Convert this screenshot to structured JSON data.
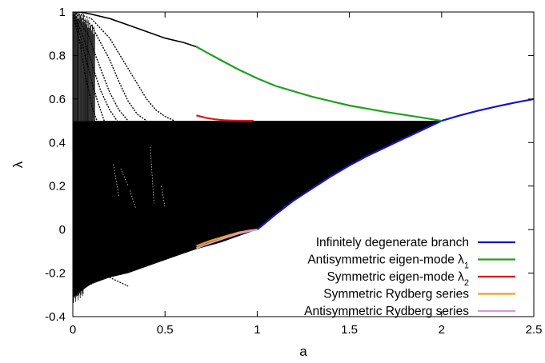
{
  "chart_data": {
    "type": "line",
    "xlabel": "a",
    "ylabel": "λ",
    "xlim": [
      0,
      2.5
    ],
    "ylim": [
      -0.4,
      1
    ],
    "x_ticks": [
      "0",
      "0.5",
      "1",
      "1.5",
      "2",
      "2.5"
    ],
    "y_ticks": [
      "-0.4",
      "-0.2",
      "0",
      "0.2",
      "0.4",
      "0.6",
      "0.8",
      "1"
    ],
    "x_tick_values": [
      0,
      0.5,
      1,
      1.5,
      2,
      2.5
    ],
    "y_tick_values": [
      -0.4,
      -0.2,
      0,
      0.2,
      0.4,
      0.6,
      0.8,
      1
    ],
    "grid": false,
    "legend_position": "bottom-right",
    "series": [
      {
        "name": "Infinitely degenerate branch",
        "color": "#1414c8",
        "x": [
          1.0,
          1.1,
          1.2,
          1.3,
          1.4,
          1.5,
          1.6,
          1.7,
          1.8,
          1.9,
          2.0,
          2.1,
          2.2,
          2.3,
          2.4,
          2.5
        ],
        "y": [
          0.0,
          0.07,
          0.135,
          0.19,
          0.245,
          0.295,
          0.34,
          0.38,
          0.42,
          0.46,
          0.5,
          0.525,
          0.547,
          0.566,
          0.584,
          0.6
        ]
      },
      {
        "name": "Antisymmetric eigen-mode λ1",
        "label_base": "Antisymmetric eigen-mode λ",
        "label_sub": "1",
        "color": "#1ea01e",
        "x": [
          0.67,
          0.8,
          0.9,
          1.0,
          1.1,
          1.2,
          1.3,
          1.4,
          1.5,
          1.6,
          1.7,
          1.8,
          1.9,
          2.0
        ],
        "y": [
          0.84,
          0.78,
          0.735,
          0.695,
          0.66,
          0.635,
          0.61,
          0.59,
          0.57,
          0.555,
          0.54,
          0.527,
          0.514,
          0.5
        ]
      },
      {
        "name": "Symmetric eigen-mode λ2",
        "label_base": "Symmetric eigen-mode λ",
        "label_sub": "2",
        "color": "#e01818",
        "x": [
          0.67,
          0.72,
          0.77,
          0.82,
          0.87,
          0.93,
          0.98
        ],
        "y": [
          0.525,
          0.514,
          0.507,
          0.503,
          0.501,
          0.5,
          0.5
        ]
      },
      {
        "name": "Symmetric Rydberg series",
        "color": "#f0a020",
        "x": [
          0.67,
          0.75,
          0.83,
          0.9,
          0.96,
          1.0
        ],
        "y": [
          -0.075,
          -0.05,
          -0.03,
          -0.013,
          -0.004,
          0.0
        ]
      },
      {
        "name": "Antisymmetric Rydberg series",
        "color": "#d69ad6",
        "x": [
          0.67,
          0.75,
          0.83,
          0.9,
          0.96,
          1.0
        ],
        "y": [
          -0.085,
          -0.06,
          -0.037,
          -0.018,
          -0.006,
          0.0
        ]
      }
    ],
    "dense_band": {
      "color": "#000000",
      "description_points_top": [
        [
          0.0,
          0.5
        ],
        [
          1.0,
          0.5
        ],
        [
          2.0,
          0.5
        ]
      ],
      "upper_envelope_x": [
        0.0,
        0.02,
        0.05,
        0.1,
        0.15,
        0.2,
        0.3,
        0.4,
        0.5,
        0.6,
        0.67,
        1.0
      ],
      "upper_envelope_y": [
        1.0,
        0.99,
        0.98,
        0.93,
        0.88,
        0.83,
        0.72,
        0.6,
        0.52,
        0.5,
        0.5,
        0.5
      ],
      "lower_envelope_x": [
        0.0,
        0.02,
        0.05,
        0.1,
        0.2,
        0.3,
        0.4,
        0.5,
        0.6,
        0.67,
        0.8,
        0.9,
        1.0
      ],
      "lower_envelope_y": [
        -0.31,
        -0.3,
        -0.28,
        -0.25,
        -0.22,
        -0.2,
        -0.17,
        -0.14,
        -0.11,
        -0.09,
        -0.06,
        -0.03,
        0.0
      ],
      "degenerate_top_curve_x": [
        0.0,
        0.05,
        0.1,
        0.2,
        0.3,
        0.4,
        0.5,
        0.6,
        0.67
      ],
      "degenerate_top_curve_y": [
        1.0,
        0.998,
        0.99,
        0.97,
        0.94,
        0.91,
        0.88,
        0.86,
        0.84
      ],
      "falling_curves": [
        {
          "x": [
            0.0,
            0.1,
            0.2,
            0.3,
            0.4,
            0.45,
            0.5,
            0.55
          ],
          "y": [
            1.0,
            0.97,
            0.88,
            0.74,
            0.6,
            0.55,
            0.52,
            0.5
          ]
        },
        {
          "x": [
            0.0,
            0.1,
            0.2,
            0.25,
            0.3,
            0.35,
            0.4
          ],
          "y": [
            1.0,
            0.94,
            0.78,
            0.68,
            0.59,
            0.53,
            0.5
          ]
        },
        {
          "x": [
            0.0,
            0.08,
            0.15,
            0.2,
            0.25,
            0.3
          ],
          "y": [
            1.0,
            0.9,
            0.74,
            0.63,
            0.55,
            0.5
          ]
        },
        {
          "x": [
            0.0,
            0.06,
            0.1,
            0.15,
            0.2,
            0.24
          ],
          "y": [
            1.0,
            0.88,
            0.77,
            0.64,
            0.55,
            0.5
          ]
        },
        {
          "x": [
            0.0,
            0.05,
            0.09,
            0.13,
            0.17
          ],
          "y": [
            1.0,
            0.86,
            0.72,
            0.6,
            0.5
          ]
        },
        {
          "x": [
            0.0,
            0.04,
            0.07,
            0.1,
            0.13
          ],
          "y": [
            1.0,
            0.85,
            0.7,
            0.58,
            0.5
          ]
        }
      ],
      "negative_fans": [
        {
          "x": [
            0.02,
            0.1,
            0.2,
            0.3,
            0.4,
            0.5,
            0.6,
            0.67
          ],
          "y": [
            -0.14,
            -0.15,
            -0.14,
            -0.12,
            -0.1,
            -0.08,
            -0.06,
            -0.05
          ]
        },
        {
          "x": [
            0.02,
            0.1,
            0.2,
            0.3,
            0.4,
            0.5,
            0.6,
            0.67
          ],
          "y": [
            -0.2,
            -0.21,
            -0.19,
            -0.17,
            -0.14,
            -0.12,
            -0.09,
            -0.07
          ]
        },
        {
          "x": [
            0.02,
            0.1,
            0.15,
            0.25,
            0.35,
            0.45,
            0.55,
            0.67
          ],
          "y": [
            -0.24,
            -0.25,
            -0.23,
            -0.2,
            -0.17,
            -0.14,
            -0.11,
            -0.08
          ]
        },
        {
          "x": [
            0.02,
            0.08,
            0.12,
            0.2,
            0.3
          ],
          "y": [
            -0.1,
            -0.13,
            -0.16,
            -0.22,
            -0.26
          ]
        }
      ]
    }
  }
}
